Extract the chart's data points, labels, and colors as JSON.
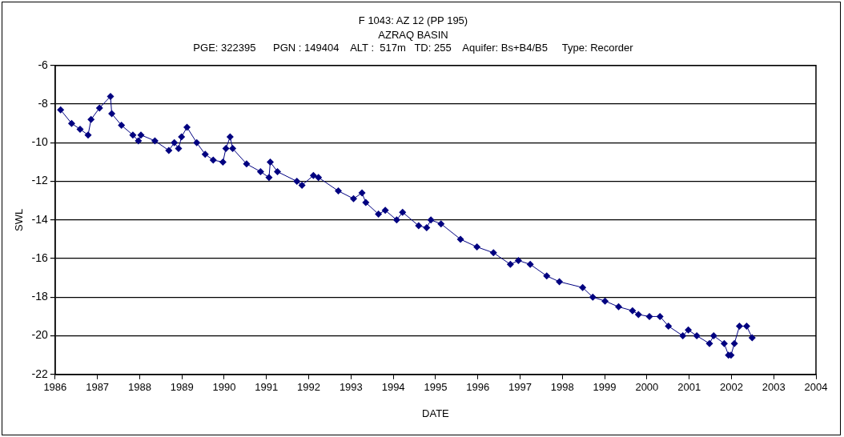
{
  "chart_data": {
    "type": "line",
    "title": "F 1043: AZ 12 (PP 195)",
    "subtitle": "AZRAQ BASIN",
    "annotations": [
      "PGE: 322395      PGN : 149404    ALT :  517m   TD: 255    Aquifer: Bs+B4/B5     Type: Recorder"
    ],
    "xlabel": "DATE",
    "ylabel": "SWL",
    "xlim": [
      1986,
      2004
    ],
    "xticks": [
      1986,
      1987,
      1988,
      1989,
      1990,
      1991,
      1992,
      1993,
      1994,
      1995,
      1996,
      1997,
      1998,
      1999,
      2000,
      2001,
      2002,
      2003,
      2004
    ],
    "ylim": [
      -22,
      -6
    ],
    "yticks": [
      -22,
      -20,
      -18,
      -16,
      -14,
      -12,
      -10,
      -8,
      -6
    ],
    "grid": "y",
    "legend": false,
    "marker": "diamond",
    "line_style": "solid",
    "series": [
      {
        "color": "#000080",
        "x": [
          1986.13,
          1986.39,
          1986.59,
          1986.78,
          1986.85,
          1987.05,
          1987.31,
          1987.34,
          1987.57,
          1987.84,
          1987.97,
          1988.03,
          1988.36,
          1988.69,
          1988.82,
          1988.92,
          1988.99,
          1989.12,
          1989.35,
          1989.55,
          1989.74,
          1989.97,
          1990.04,
          1990.14,
          1990.2,
          1990.53,
          1990.86,
          1991.06,
          1991.09,
          1991.26,
          1991.72,
          1991.84,
          1992.11,
          1992.23,
          1992.7,
          1993.06,
          1993.26,
          1993.35,
          1993.65,
          1993.81,
          1994.08,
          1994.22,
          1994.6,
          1994.79,
          1994.89,
          1995.13,
          1995.59,
          1995.98,
          1996.37,
          1996.77,
          1996.96,
          1997.24,
          1997.63,
          1997.93,
          1998.48,
          1998.72,
          1999.01,
          1999.33,
          1999.66,
          1999.8,
          2000.06,
          2000.31,
          2000.51,
          2000.85,
          2000.98,
          2001.18,
          2001.48,
          2001.58,
          2001.83,
          2001.93,
          2001.99,
          2002.07,
          2002.19,
          2002.36,
          2002.49
        ],
        "values": [
          -8.3,
          -9.0,
          -9.3,
          -9.6,
          -8.8,
          -8.2,
          -7.6,
          -8.5,
          -9.1,
          -9.6,
          -9.9,
          -9.6,
          -9.9,
          -10.4,
          -10.0,
          -10.3,
          -9.7,
          -9.2,
          -10.0,
          -10.6,
          -10.9,
          -11.0,
          -10.3,
          -9.7,
          -10.3,
          -11.1,
          -11.5,
          -11.8,
          -11.0,
          -11.5,
          -12.0,
          -12.2,
          -11.7,
          -11.8,
          -12.5,
          -12.9,
          -12.6,
          -13.1,
          -13.7,
          -13.5,
          -14.0,
          -13.6,
          -14.3,
          -14.4,
          -14.0,
          -14.2,
          -15.0,
          -15.4,
          -15.7,
          -16.3,
          -16.1,
          -16.3,
          -16.9,
          -17.2,
          -17.5,
          -18.0,
          -18.2,
          -18.5,
          -18.7,
          -18.9,
          -19.0,
          -19.0,
          -19.5,
          -20.0,
          -19.7,
          -20.0,
          -20.4,
          -20.0,
          -20.4,
          -21.0,
          -21.0,
          -20.4,
          -19.5,
          -19.5,
          -20.1
        ]
      }
    ]
  }
}
